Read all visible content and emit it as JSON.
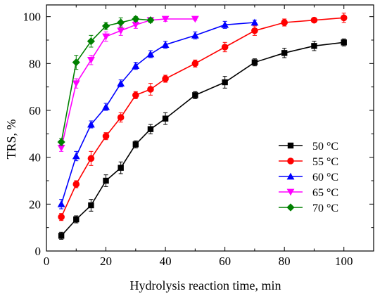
{
  "chart_data": {
    "type": "line",
    "title": "",
    "xlabel": "Hydrolysis reaction time, min",
    "ylabel": "TRS, %",
    "xlim": [
      0,
      110
    ],
    "ylim": [
      0,
      105
    ],
    "xticks": [
      0,
      20,
      40,
      60,
      80,
      100
    ],
    "yticks": [
      0,
      20,
      40,
      60,
      80,
      100
    ],
    "grid": false,
    "legend_position": "lower-right",
    "series": [
      {
        "name": "50 °C",
        "color": "#000000",
        "marker": "square",
        "x": [
          5,
          10,
          15,
          20,
          25,
          30,
          35,
          40,
          50,
          60,
          70,
          80,
          90,
          100
        ],
        "y": [
          6.5,
          13.5,
          19.5,
          30,
          35.5,
          45.5,
          52,
          56.5,
          66.5,
          72,
          80.5,
          84.5,
          87.5,
          89
        ],
        "err": [
          1.5,
          1.5,
          2.5,
          2.5,
          2.5,
          1.5,
          2,
          2.5,
          1.5,
          2.5,
          1.5,
          2,
          2,
          1.5
        ]
      },
      {
        "name": "55 °C",
        "color": "#ff0000",
        "marker": "circle",
        "x": [
          5,
          10,
          15,
          20,
          25,
          30,
          35,
          40,
          50,
          60,
          70,
          80,
          90,
          100
        ],
        "y": [
          14.5,
          28.5,
          39.5,
          49,
          57,
          66.5,
          69,
          73.5,
          80,
          87,
          94,
          97.5,
          98.5,
          99.5
        ],
        "err": [
          1.5,
          1.5,
          3,
          1.5,
          2,
          1.5,
          2.5,
          1.5,
          1.5,
          2,
          2,
          1.5,
          1,
          2
        ]
      },
      {
        "name": "60 °C",
        "color": "#0000ff",
        "marker": "triangle-up",
        "x": [
          5,
          10,
          15,
          20,
          25,
          30,
          35,
          40,
          50,
          60,
          70
        ],
        "y": [
          20,
          40.5,
          54,
          61.5,
          71.5,
          79,
          84,
          88,
          92,
          96.5,
          97.5
        ],
        "err": [
          2,
          2,
          1.5,
          1.5,
          1.5,
          1.5,
          1.5,
          1.5,
          1.5,
          1.5,
          1
        ]
      },
      {
        "name": "65 °C",
        "color": "#ff00ff",
        "marker": "triangle-down",
        "x": [
          5,
          10,
          15,
          20,
          25,
          30,
          35,
          40,
          50
        ],
        "y": [
          44,
          71.5,
          81.5,
          91.5,
          94,
          96.5,
          98.5,
          99,
          99
        ],
        "err": [
          1.5,
          2,
          2,
          2,
          2,
          1.5,
          1,
          1,
          0.5
        ]
      },
      {
        "name": "70 °C",
        "color": "#008000",
        "marker": "diamond",
        "x": [
          5,
          10,
          15,
          20,
          25,
          30,
          35
        ],
        "y": [
          46.5,
          80.5,
          89.5,
          96,
          97.5,
          99,
          98.5
        ],
        "err": [
          1.5,
          3,
          2.5,
          1.5,
          2,
          1,
          1
        ]
      }
    ]
  }
}
